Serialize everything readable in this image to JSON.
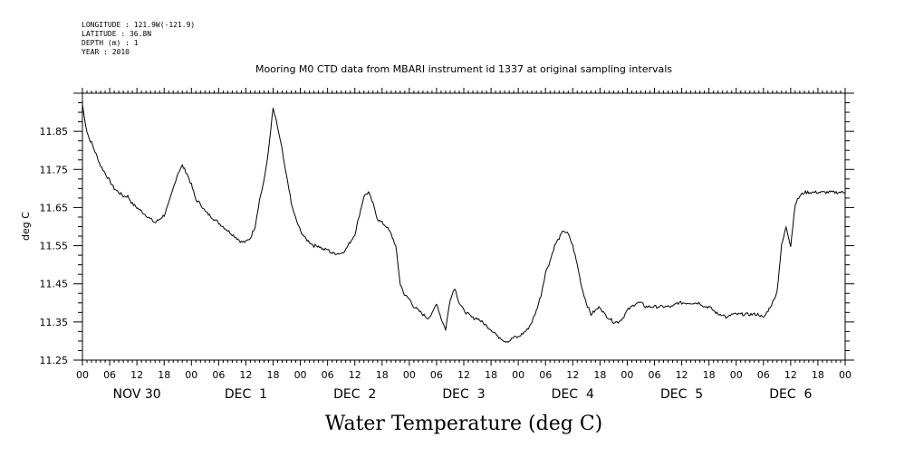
{
  "metadata": {
    "longitude": "LONGITUDE : 121.9W(-121.9)",
    "latitude": "LATITUDE : 36.8N",
    "depth": "DEPTH (m) : 1",
    "year": "YEAR : 2010"
  },
  "chart_data": {
    "type": "line",
    "title": "Mooring M0 CTD data from MBARI instrument id 1337 at original sampling intervals",
    "xlabel": "Water Temperature (deg C)",
    "ylabel": "deg C",
    "ylim": [
      11.25,
      11.95
    ],
    "xlim_hours": [
      0,
      168
    ],
    "y_ticks": [
      "11.25",
      "11.35",
      "11.45",
      "11.55",
      "11.65",
      "11.75",
      "11.85"
    ],
    "x_hour_ticks": [
      "00",
      "06",
      "12",
      "18",
      "00",
      "06",
      "12",
      "18",
      "00",
      "06",
      "12",
      "18",
      "00",
      "06",
      "12",
      "18",
      "00",
      "06",
      "12",
      "18",
      "00",
      "06",
      "12",
      "18",
      "00",
      "06",
      "12",
      "18",
      "00"
    ],
    "x_date_labels": [
      "NOV 30",
      "DEC  1",
      "DEC  2",
      "DEC  3",
      "DEC  4",
      "DEC  5",
      "DEC  6"
    ],
    "grid": false,
    "legend": "none",
    "series": [
      {
        "x": [
          0,
          0.5,
          1,
          1.5,
          2,
          3,
          4,
          5,
          6,
          7,
          8,
          9,
          10,
          11,
          12,
          13,
          14,
          15,
          16,
          17,
          18,
          19,
          20,
          21,
          22,
          23,
          24,
          25,
          26,
          27,
          28,
          29,
          30,
          31,
          32,
          33,
          34,
          35,
          36,
          37,
          38,
          39,
          40,
          41,
          42,
          43,
          44,
          44.5,
          45,
          45.5,
          46,
          47,
          48,
          49,
          50,
          51,
          52,
          53,
          54,
          55,
          56,
          57,
          58,
          59,
          60,
          61,
          62,
          63,
          64,
          65,
          66,
          67,
          68,
          69,
          70,
          71,
          72,
          73,
          74,
          75,
          76,
          77,
          78,
          79,
          80,
          81,
          82,
          83,
          84,
          85,
          86,
          87,
          88,
          89,
          90,
          91,
          91.5,
          92,
          93,
          94,
          95,
          96,
          97,
          98,
          99,
          100,
          101,
          102,
          103,
          104,
          105,
          106,
          107,
          108,
          109,
          110,
          111,
          112,
          113,
          114,
          115,
          116,
          117,
          118,
          119,
          120,
          121,
          122,
          123,
          124,
          125,
          126,
          127,
          128,
          129,
          130,
          131,
          132,
          133,
          134,
          135,
          136,
          137,
          138,
          139,
          140,
          141,
          142,
          143,
          144,
          145,
          146,
          147,
          148,
          149,
          150,
          151,
          152,
          153,
          154,
          155,
          156,
          157,
          158,
          159,
          160,
          161,
          162,
          163,
          164,
          165,
          166,
          167,
          168
        ],
        "y": [
          11.92,
          11.88,
          11.85,
          11.83,
          11.82,
          11.79,
          11.76,
          11.74,
          11.72,
          11.7,
          11.69,
          11.68,
          11.68,
          11.66,
          11.65,
          11.64,
          11.63,
          11.62,
          11.61,
          11.62,
          11.63,
          11.66,
          11.7,
          11.74,
          11.76,
          11.74,
          11.71,
          11.67,
          11.66,
          11.64,
          11.63,
          11.62,
          11.61,
          11.6,
          11.59,
          11.58,
          11.57,
          11.56,
          11.56,
          11.57,
          11.6,
          11.67,
          11.72,
          11.8,
          11.91,
          11.86,
          11.8,
          11.76,
          11.73,
          11.7,
          11.66,
          11.62,
          11.59,
          11.57,
          11.56,
          11.55,
          11.55,
          11.54,
          11.54,
          11.53,
          11.53,
          11.53,
          11.54,
          11.56,
          11.58,
          11.63,
          11.68,
          11.69,
          11.66,
          11.62,
          11.61,
          11.6,
          11.58,
          11.55,
          11.45,
          11.42,
          11.41,
          11.39,
          11.38,
          11.37,
          11.36,
          11.37,
          11.4,
          11.36,
          11.33,
          11.41,
          11.44,
          11.4,
          11.38,
          11.37,
          11.36,
          11.36,
          11.35,
          11.34,
          11.33,
          11.32,
          11.31,
          11.31,
          11.3,
          11.3,
          11.31,
          11.31,
          11.32,
          11.33,
          11.35,
          11.38,
          11.42,
          11.48,
          11.51,
          11.55,
          11.57,
          11.59,
          11.58,
          11.55,
          11.5,
          11.44,
          11.4,
          11.37,
          11.38,
          11.39,
          11.37,
          11.36,
          11.35,
          11.35,
          11.36,
          11.38,
          11.39,
          11.4,
          11.4,
          11.39,
          11.39,
          11.39,
          11.39,
          11.39,
          11.39,
          11.39,
          11.4,
          11.4,
          11.4,
          11.4,
          11.4,
          11.4,
          11.39,
          11.39,
          11.38,
          11.37,
          11.37,
          11.36,
          11.37,
          11.37,
          11.37,
          11.37,
          11.37,
          11.37,
          11.37,
          11.36,
          11.38,
          11.4,
          11.43,
          11.55,
          11.6,
          11.55,
          11.66,
          11.68,
          11.69,
          11.69,
          11.69,
          11.69,
          11.69,
          11.69,
          11.69,
          11.69,
          11.69,
          11.69
        ]
      }
    ]
  }
}
